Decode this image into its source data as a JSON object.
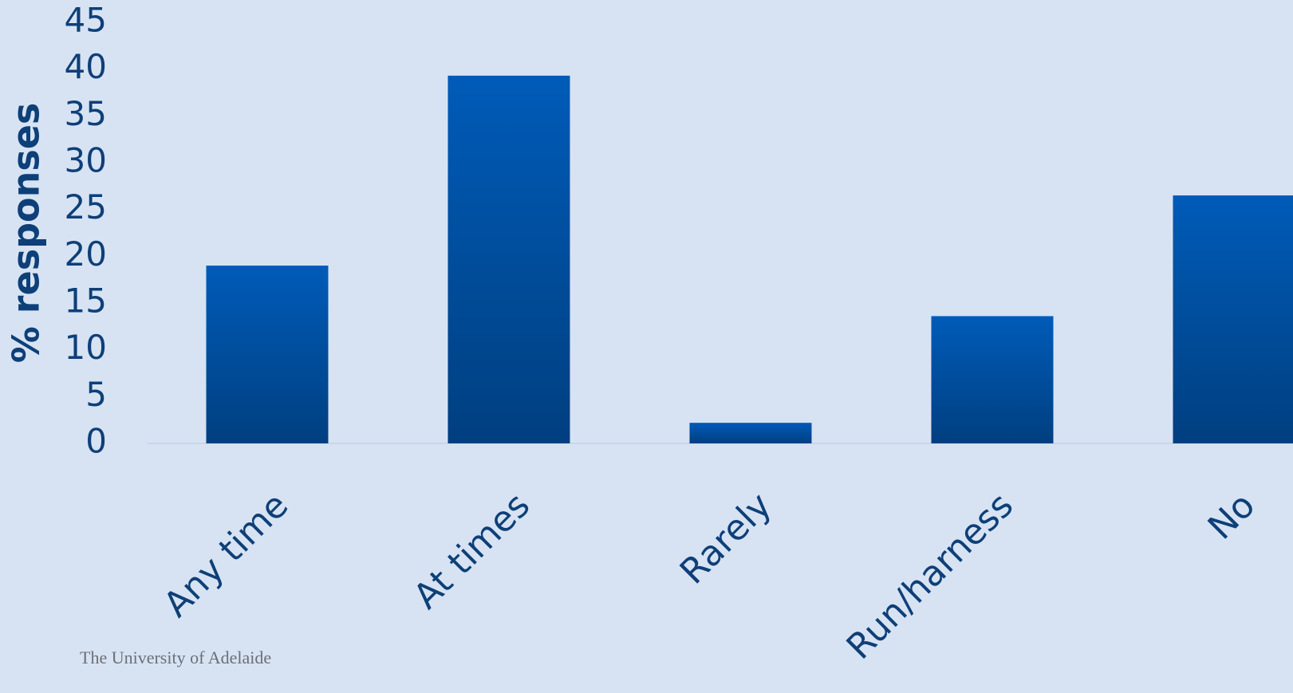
{
  "chart_data": {
    "type": "bar",
    "y_label": "% responses",
    "categories": [
      "Any time",
      "At times",
      "Rarely",
      "Run/harness",
      "No"
    ],
    "values": [
      19,
      39.3,
      2.2,
      13.6,
      26.5
    ],
    "color": "#005bb8",
    "ylim": [
      0,
      45
    ],
    "yticks": [
      0,
      5,
      10,
      15,
      20,
      25,
      30,
      35,
      40,
      45
    ],
    "grid": false,
    "footer": "The University of Adelaide"
  }
}
